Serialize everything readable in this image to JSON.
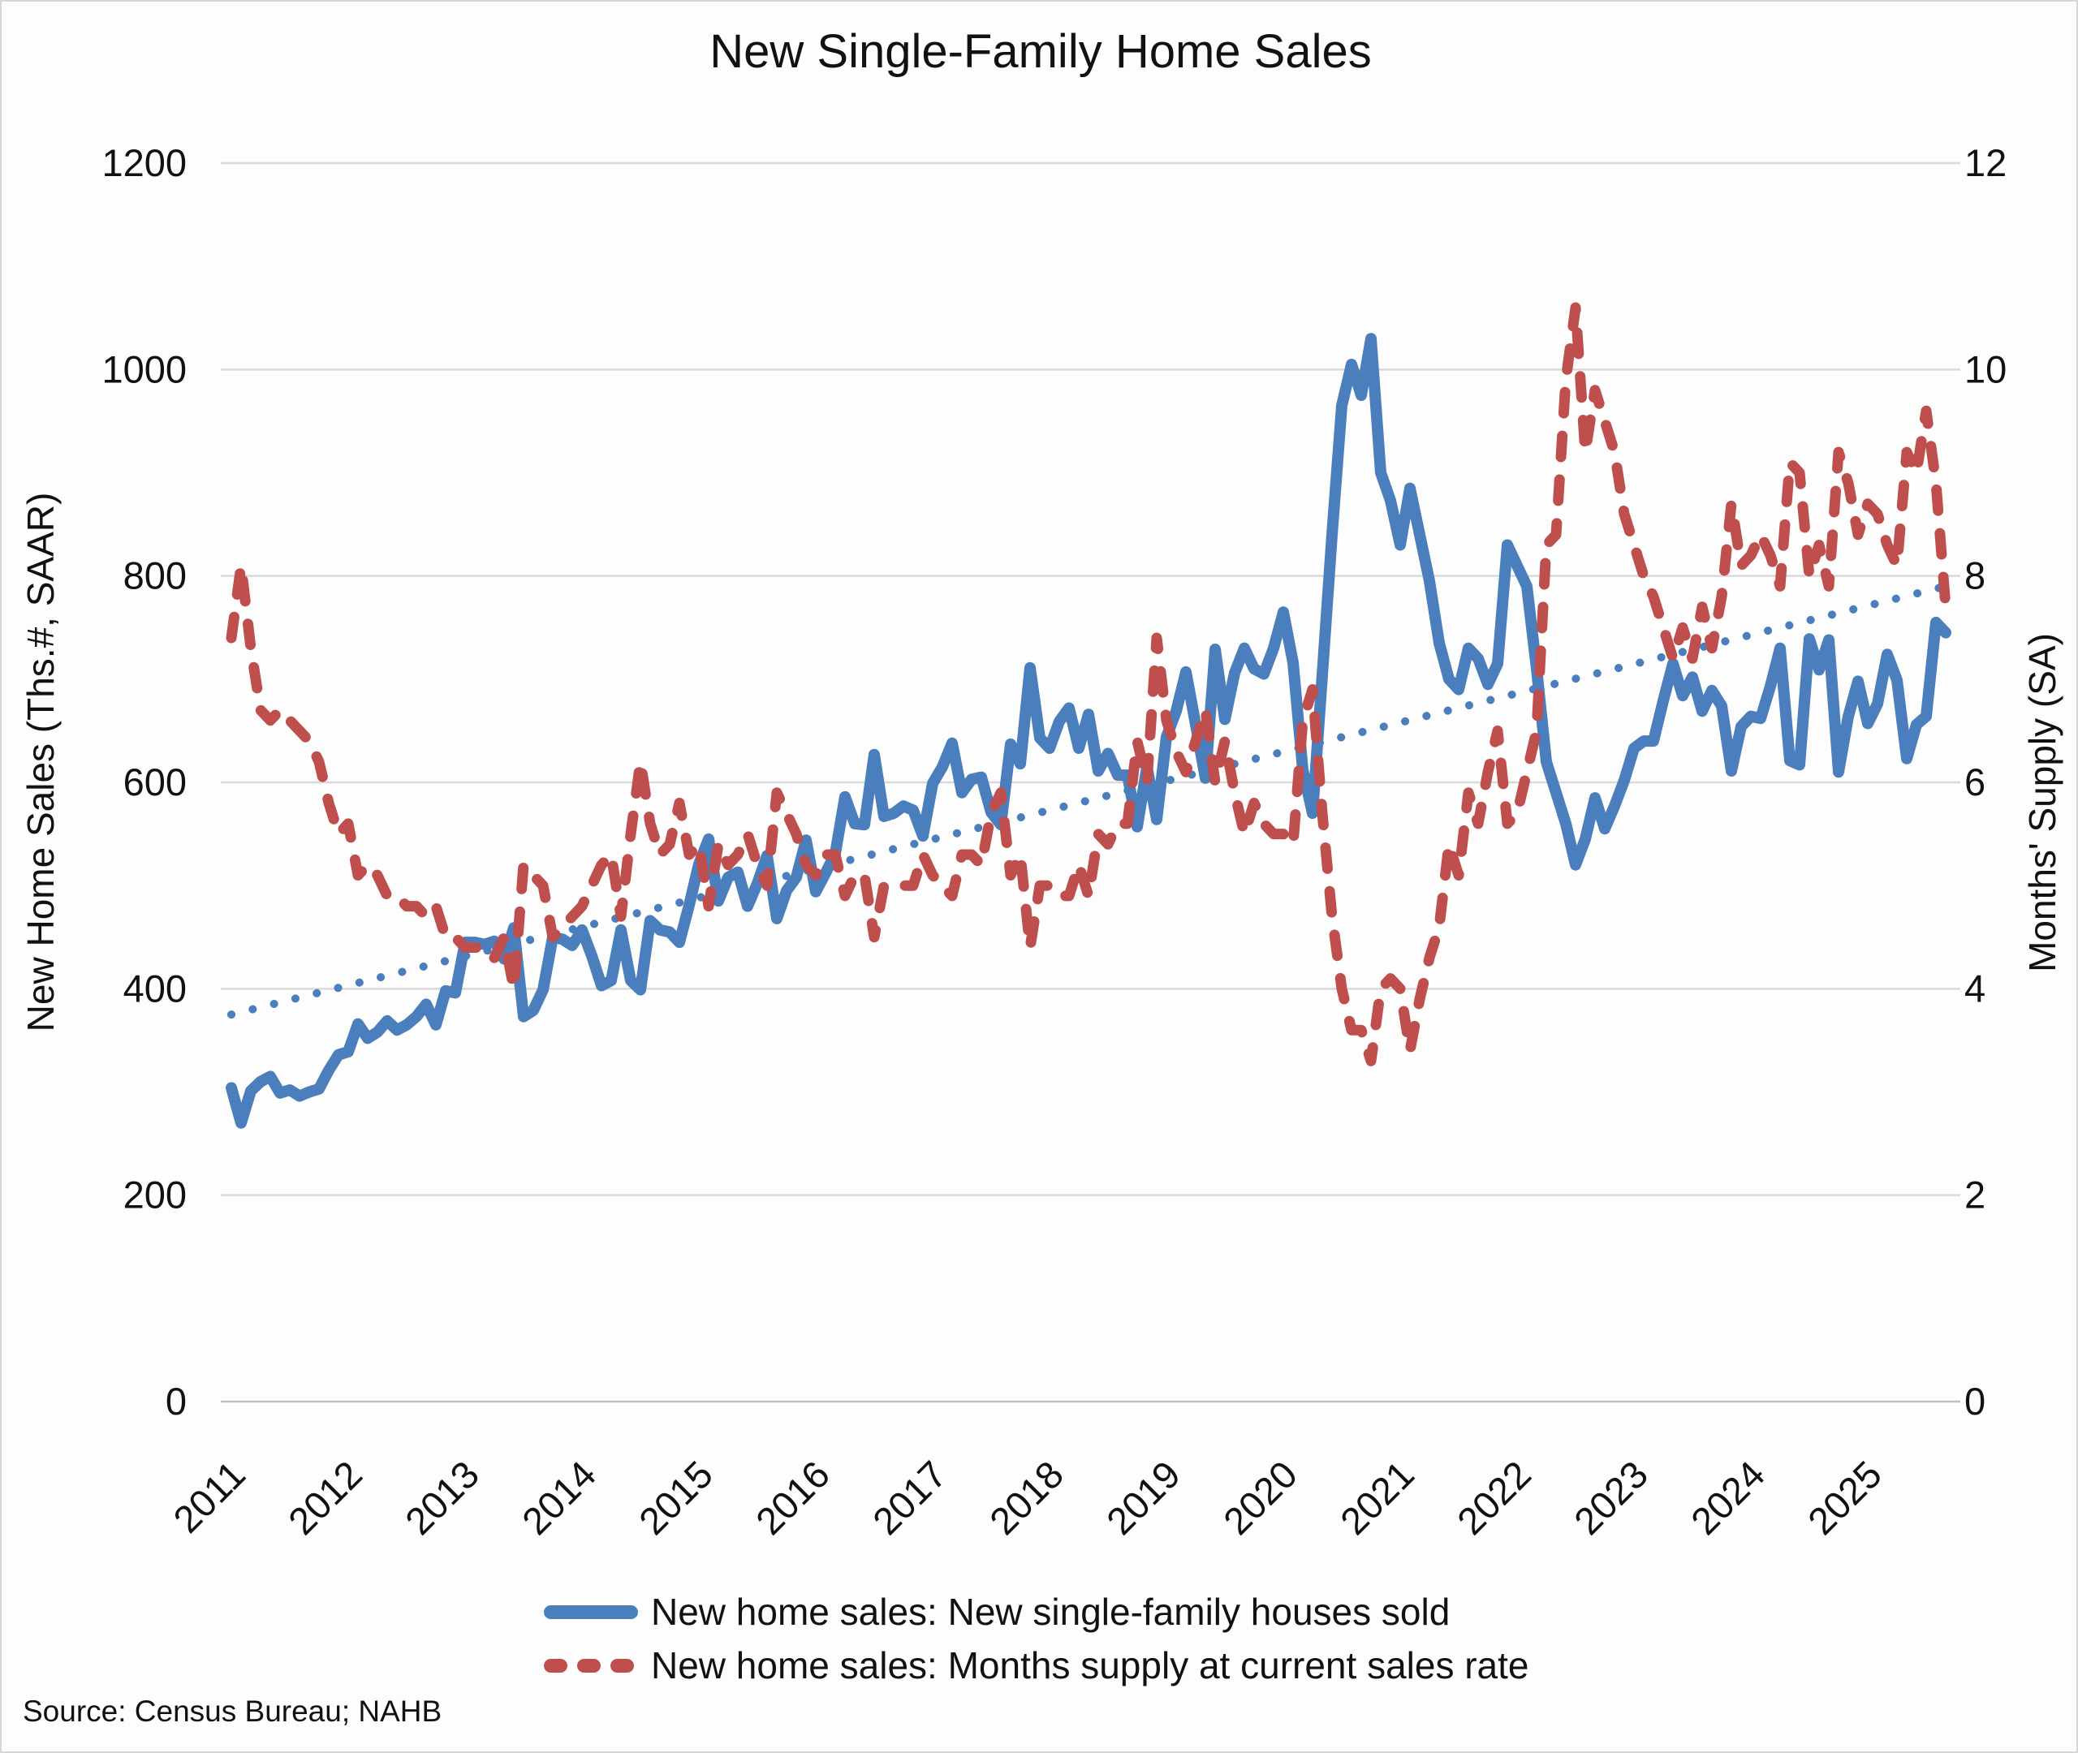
{
  "title": "New Single-Family Home Sales",
  "source": "Source: Census Bureau; NAHB",
  "colors": {
    "sales_line": "#4a7ebc",
    "supply_line": "#bf4f4c",
    "trend_line": "#4a7ebc",
    "gridline": "#d9d9d9",
    "axis_line": "#bfbfbf",
    "text": "#111111"
  },
  "legend": {
    "items": [
      {
        "label": "New home sales: New single-family houses sold",
        "style": "solid",
        "color": "#4a7ebc"
      },
      {
        "label": "New home sales: Months supply at current sales rate",
        "style": "dashed",
        "color": "#bf4f4c"
      }
    ]
  },
  "chart_data": {
    "type": "line",
    "title": "New Single-Family Home Sales",
    "ylabel_left": "New Home Sales (Ths.#, SAAR)",
    "ylabel_right": "Months' Supply (SA)",
    "ylim_left": [
      0,
      1200
    ],
    "yticks_left": [
      0,
      200,
      400,
      600,
      800,
      1000,
      1200
    ],
    "ylim_right": [
      0,
      12
    ],
    "yticks_right": [
      0,
      2,
      4,
      6,
      8,
      10,
      12
    ],
    "x_tick_years": [
      2011,
      2012,
      2013,
      2014,
      2015,
      2016,
      2017,
      2018,
      2019,
      2020,
      2021,
      2022,
      2023,
      2024,
      2025
    ],
    "x_start_year": 2011,
    "frequency": "monthly",
    "grid": true,
    "legend_position": "bottom",
    "series": [
      {
        "name": "New home sales: New single-family houses sold",
        "axis": "left",
        "style": "solid",
        "color": "#4a7ebc",
        "values": [
          304,
          270,
          301,
          310,
          315,
          299,
          302,
          296,
          300,
          303,
          321,
          336,
          339,
          366,
          352,
          358,
          369,
          360,
          365,
          373,
          385,
          365,
          398,
          396,
          445,
          445,
          443,
          446,
          429,
          459,
          373,
          379,
          399,
          450,
          448,
          442,
          457,
          432,
          403,
          408,
          457,
          408,
          399,
          466,
          457,
          455,
          445,
          481,
          521,
          545,
          485,
          508,
          513,
          480,
          502,
          529,
          468,
          495,
          508,
          544,
          494,
          512,
          531,
          586,
          560,
          559,
          627,
          567,
          570,
          577,
          573,
          548,
          599,
          615,
          638,
          590,
          603,
          605,
          571,
          559,
          637,
          618,
          711,
          643,
          633,
          659,
          672,
          633,
          666,
          611,
          628,
          607,
          607,
          557,
          615,
          564,
          644,
          669,
          707,
          656,
          604,
          729,
          661,
          706,
          730,
          710,
          705,
          730,
          765,
          716,
          612,
          570,
          704,
          840,
          965,
          1005,
          975,
          1030,
          900,
          873,
          830,
          885,
          840,
          795,
          735,
          700,
          690,
          730,
          720,
          695,
          715,
          830,
          810,
          790,
          710,
          620,
          590,
          560,
          520,
          545,
          585,
          555,
          577,
          602,
          633,
          640,
          640,
          679,
          715,
          684,
          702,
          669,
          689,
          674,
          611,
          654,
          664,
          662,
          693,
          730,
          621,
          617,
          739,
          709,
          738,
          610,
          664,
          698,
          657,
          676,
          724,
          699,
          623,
          656,
          664,
          755,
          745
        ]
      },
      {
        "name": "New home sales: Months supply at current sales rate",
        "axis": "right",
        "style": "dashed",
        "color": "#bf4f4c",
        "values": [
          7.4,
          8.1,
          7.3,
          6.7,
          6.6,
          6.7,
          6.6,
          6.5,
          6.4,
          6.2,
          5.8,
          5.5,
          5.6,
          5.1,
          5.2,
          5.1,
          4.9,
          4.9,
          4.8,
          4.8,
          4.7,
          4.8,
          4.5,
          4.5,
          4.4,
          4.4,
          4.4,
          4.3,
          4.5,
          4.0,
          5.2,
          5.1,
          5.0,
          4.5,
          4.6,
          4.7,
          4.8,
          5.0,
          5.2,
          5.3,
          4.7,
          5.5,
          6.2,
          5.6,
          5.3,
          5.4,
          5.8,
          5.3,
          5.4,
          4.8,
          5.4,
          5.2,
          5.3,
          5.5,
          5.2,
          5.0,
          5.9,
          5.7,
          5.5,
          5.2,
          5.1,
          5.3,
          5.3,
          4.9,
          5.1,
          5.1,
          4.5,
          5.0,
          5.0,
          5.0,
          5.0,
          5.3,
          5.1,
          5.0,
          4.9,
          5.3,
          5.3,
          5.2,
          5.7,
          5.9,
          5.1,
          5.3,
          4.4,
          5.0,
          5.0,
          4.9,
          4.9,
          5.2,
          4.9,
          5.5,
          5.4,
          5.6,
          5.6,
          6.4,
          6.0,
          7.4,
          6.6,
          6.3,
          6.1,
          6.4,
          6.7,
          6.0,
          6.4,
          5.9,
          5.5,
          5.8,
          5.6,
          5.5,
          5.5,
          5.4,
          6.6,
          6.9,
          5.7,
          4.7,
          4.0,
          3.6,
          3.6,
          3.3,
          4.0,
          4.1,
          4.0,
          3.4,
          3.9,
          4.3,
          4.6,
          5.4,
          5.1,
          5.9,
          5.6,
          6.1,
          6.5,
          5.6,
          5.7,
          6.1,
          6.5,
          8.3,
          8.4,
          9.9,
          10.6,
          9.2,
          9.8,
          9.5,
          9.2,
          8.6,
          8.3,
          8.0,
          7.8,
          7.5,
          7.2,
          7.5,
          7.2,
          7.7,
          7.3,
          7.8,
          8.7,
          8.1,
          8.2,
          8.4,
          8.2,
          7.9,
          9.1,
          9.0,
          8.0,
          8.3,
          7.9,
          9.2,
          8.9,
          8.4,
          8.7,
          8.6,
          8.3,
          8.1,
          9.2,
          9.0,
          9.6,
          8.9,
          7.7
        ]
      }
    ],
    "trendline": {
      "for_series": "New home sales: New single-family houses sold",
      "axis": "left",
      "style": "dotted",
      "color": "#4a7ebc",
      "start_value": 375,
      "end_value": 790
    },
    "source": "Source: Census Bureau; NAHB"
  }
}
